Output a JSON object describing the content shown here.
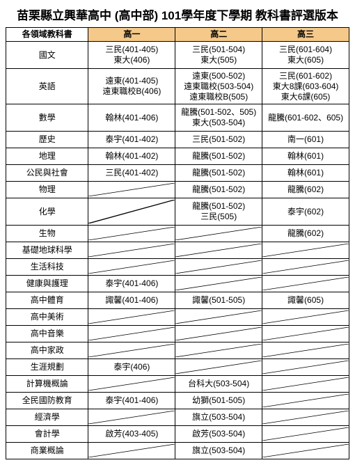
{
  "title": "苗栗縣立興華高中 (高中部) 101學年度下學期 教科書評選版本",
  "header": {
    "subject": "各領域教科書",
    "g1": "高一",
    "g2": "高二",
    "g3": "高三"
  },
  "rows": [
    {
      "subject": "國文",
      "h": "tall",
      "g1": "三民(401-405)\n東大(406)",
      "g2": "三民(501-504)\n東大(505)",
      "g3": "三民(601-604)\n東大(605)"
    },
    {
      "subject": "英語",
      "h": "tall3",
      "g1": "遠東(401-405)\n遠東職校B(406)",
      "g2": "遠東(500-502)\n遠東職校(503-504)\n遠東職校B(505)",
      "g3": "三民(601-602)\n東大8課(603-604)\n東大6課(605)"
    },
    {
      "subject": "數學",
      "h": "tall",
      "g1": "翰林(401-406)",
      "g2": "龍騰(501-502、505)\n東大(503-504)",
      "g3": "龍騰(601-602、605)"
    },
    {
      "subject": "歷史",
      "h": "short",
      "g1": "泰宇(401-402)",
      "g2": "三民(501-502)",
      "g3": "南一(601)"
    },
    {
      "subject": "地理",
      "h": "short",
      "g1": "翰林(401-402)",
      "g2": "龍騰(501-502)",
      "g3": "翰林(601)"
    },
    {
      "subject": "公民與社會",
      "h": "short",
      "g1": "三民(401-402)",
      "g2": "龍騰(501-502)",
      "g3": "翰林(601)"
    },
    {
      "subject": "物理",
      "h": "short",
      "g1": null,
      "g2": "龍騰(501-502)",
      "g3": "龍騰(602)"
    },
    {
      "subject": "化學",
      "h": "tall",
      "g1": null,
      "g2": "龍騰(501-502)\n三民(505)",
      "g3": "泰宇(602)"
    },
    {
      "subject": "生物",
      "h": "short",
      "g1": null,
      "g2": null,
      "g3": "龍騰(602)"
    },
    {
      "subject": "基礎地球科學",
      "h": "short",
      "g1": null,
      "g2": null,
      "g3": null
    },
    {
      "subject": "生活科技",
      "h": "short",
      "g1": null,
      "g2": null,
      "g3": null
    },
    {
      "subject": "健康與護理",
      "h": "short",
      "g1": "泰宇(401-406)",
      "g2": null,
      "g3": null
    },
    {
      "subject": "高中體育",
      "h": "short",
      "g1": "諏馨(401-406)",
      "g2": "諏馨(501-505)",
      "g3": "諏馨(605)"
    },
    {
      "subject": "高中美術",
      "h": "short",
      "g1": null,
      "g2": null,
      "g3": null
    },
    {
      "subject": "高中音樂",
      "h": "short",
      "g1": null,
      "g2": null,
      "g3": null
    },
    {
      "subject": "高中家政",
      "h": "short",
      "g1": null,
      "g2": null,
      "g3": null
    },
    {
      "subject": "生涯規劃",
      "h": "short",
      "g1": "泰宇(406)",
      "g2": null,
      "g3": null
    },
    {
      "subject": "計算機概論",
      "h": "short",
      "g1": null,
      "g2": "台科大(503-504)",
      "g3": null
    },
    {
      "subject": "全民國防教育",
      "h": "short",
      "g1": "泰宇(401-406)",
      "g2": "幼獅(501-505)",
      "g3": null
    },
    {
      "subject": "經濟學",
      "h": "short",
      "g1": null,
      "g2": "旗立(503-504)",
      "g3": null
    },
    {
      "subject": "會計學",
      "h": "short",
      "g1": "啟芳(403-405)",
      "g2": "啟芳(503-504)",
      "g3": null
    },
    {
      "subject": "商業概論",
      "h": "short",
      "g1": null,
      "g2": "旗立(503-504)",
      "g3": null
    }
  ]
}
